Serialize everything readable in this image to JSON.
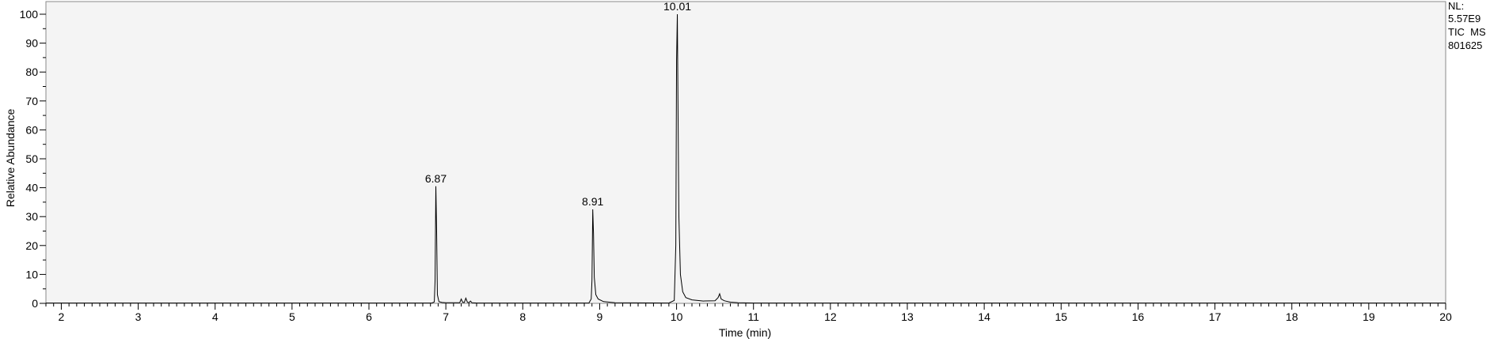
{
  "chart_data": {
    "type": "line",
    "xlabel": "Time (min)",
    "ylabel": "Relative Abundance",
    "xlim": [
      1.8,
      20
    ],
    "ylim": [
      0,
      100
    ],
    "x_ticks": [
      2,
      3,
      4,
      5,
      6,
      7,
      8,
      9,
      10,
      11,
      12,
      13,
      14,
      15,
      16,
      17,
      18,
      19,
      20
    ],
    "y_ticks": [
      0,
      10,
      20,
      30,
      40,
      50,
      60,
      70,
      80,
      90,
      100
    ],
    "grid": false,
    "legend": "none",
    "info_lines": [
      "NL:",
      "5.57E9",
      "TIC  MS",
      "801625"
    ],
    "peak_labels": [
      {
        "text": "6.87",
        "x": 6.87,
        "y": 40.5
      },
      {
        "text": "8.91",
        "x": 8.91,
        "y": 32.5
      },
      {
        "text": "10.01",
        "x": 10.01,
        "y": 100
      }
    ],
    "series": [
      {
        "x": [
          1.8,
          6.82,
          6.85,
          6.86,
          6.87,
          6.88,
          6.89,
          6.91,
          6.95,
          7.0,
          7.18,
          7.2,
          7.22,
          7.24,
          7.26,
          7.28,
          7.3,
          7.32,
          7.34,
          7.4,
          8.86,
          8.89,
          8.9,
          8.91,
          8.92,
          8.93,
          8.95,
          8.98,
          9.05,
          9.2,
          9.9,
          9.97,
          9.99,
          10.0,
          10.01,
          10.02,
          10.03,
          10.05,
          10.08,
          10.12,
          10.2,
          10.35,
          10.5,
          10.54,
          10.56,
          10.58,
          10.62,
          10.7,
          10.8,
          11.0,
          20.0
        ],
        "y": [
          0.1,
          0.1,
          0.5,
          8,
          40.5,
          25,
          3,
          0.6,
          0.3,
          0.2,
          0.2,
          1.5,
          0.3,
          0.3,
          1.8,
          0.4,
          0.2,
          0.8,
          0.2,
          0.1,
          0.1,
          1.5,
          8,
          32.5,
          24,
          9,
          3,
          1.5,
          0.6,
          0.2,
          0.1,
          1.0,
          20,
          84,
          100,
          63,
          30,
          10,
          4,
          2,
          1.2,
          0.8,
          0.9,
          2,
          3.3,
          1.5,
          0.9,
          0.4,
          0.2,
          0.1,
          0.1
        ]
      }
    ]
  }
}
